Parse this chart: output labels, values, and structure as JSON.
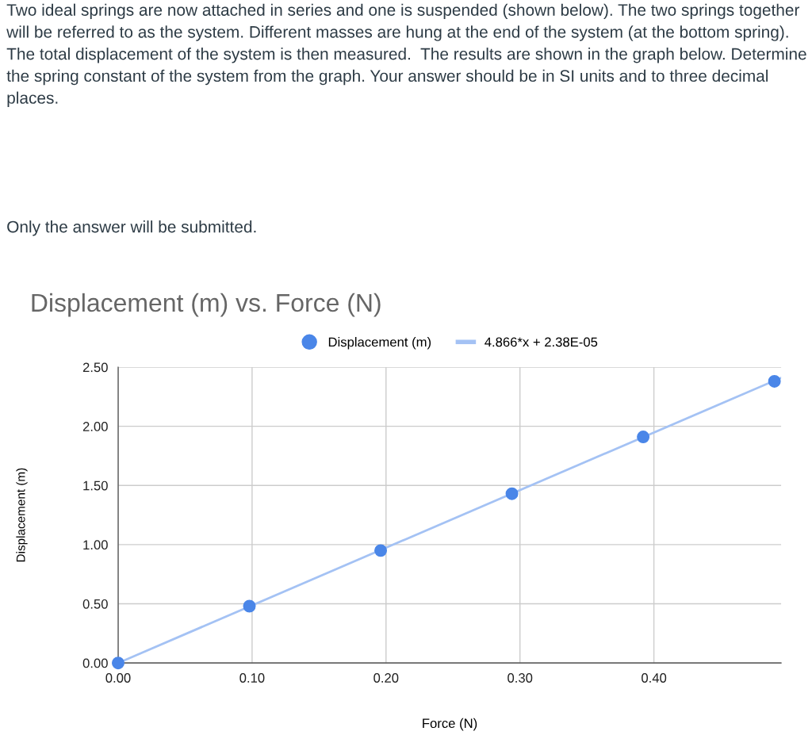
{
  "chart_data": {
    "type": "scatter",
    "title": "Displacement (m) vs. Force (N)",
    "xlabel": "Force (N)",
    "ylabel": "Displacement (m)",
    "annotations": [
      "Two ideal springs are now attached in series and one is suspended (shown below). The two springs together will be referred to as the system. Different masses are hung at the end of the system (at the bottom spring). The total displacement of the system is then measured.  The results are shown in the graph below. Determine the spring constant of the system from the graph. Your answer should be in SI units and to three decimal places.",
      "Only the answer will be submitted."
    ],
    "x": [
      0,
      0.098,
      0.196,
      0.294,
      0.392,
      0.49
    ],
    "series": [
      {
        "name": "Displacement (m)",
        "color": "#4a86e8",
        "values": [
          0,
          0.48,
          0.95,
          1.43,
          1.91,
          2.38
        ],
        "marker": "circle"
      },
      {
        "name": "4.866*x + 2.38E-05",
        "type": "line",
        "color": "#a4c2f4",
        "x": [
          0,
          0.495
        ],
        "values": [
          0,
          2.41
        ]
      }
    ],
    "xlim": [
      0,
      0.495
    ],
    "ylim": [
      0,
      2.5
    ],
    "xticks": [
      {
        "value": 0,
        "label": "0.00"
      },
      {
        "value": 0.1,
        "label": "0.10"
      },
      {
        "value": 0.2,
        "label": "0.20"
      },
      {
        "value": 0.3,
        "label": "0.30"
      },
      {
        "value": 0.4,
        "label": "0.40"
      }
    ],
    "yticks": [
      {
        "value": 0,
        "label": "0.00"
      },
      {
        "value": 0.5,
        "label": "0.50"
      },
      {
        "value": 1,
        "label": "1.00"
      },
      {
        "value": 1.5,
        "label": "1.50"
      },
      {
        "value": 2,
        "label": "2.00"
      },
      {
        "value": 2.5,
        "label": "2.50"
      }
    ],
    "grid": true,
    "legend": "top"
  }
}
